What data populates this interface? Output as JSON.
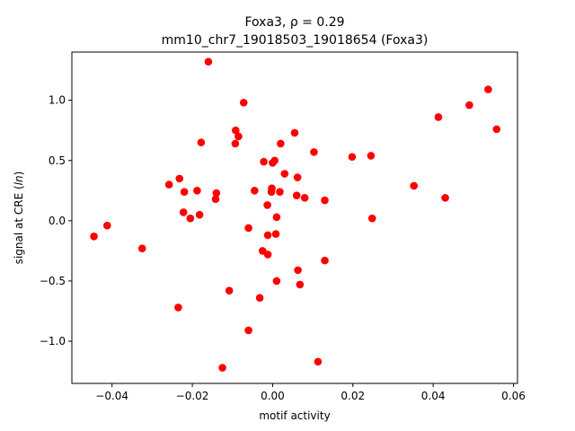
{
  "chart_data": {
    "type": "scatter",
    "title_line1": "Foxa3, ρ = 0.29",
    "title_line2": "mm10_chr7_19018503_19018654 (Foxa3)",
    "xlabel": "motif activity",
    "ylabel": "signal at CRE (ln)",
    "xlim": [
      -0.05,
      0.061
    ],
    "ylim": [
      -1.35,
      1.4
    ],
    "xticks": [
      -0.04,
      -0.02,
      0.0,
      0.02,
      0.04,
      0.06
    ],
    "xtick_labels": [
      "−0.04",
      "−0.02",
      "0.00",
      "0.02",
      "0.04",
      "0.06"
    ],
    "yticks": [
      -1.0,
      -0.5,
      0.0,
      0.5,
      1.0
    ],
    "ytick_labels": [
      "−1.0",
      "−0.5",
      "0.0",
      "0.5",
      "1.0"
    ],
    "grid": false,
    "marker_color": "#ff0000",
    "points": [
      {
        "x": -0.0445,
        "y": -0.13
      },
      {
        "x": -0.0412,
        "y": -0.04
      },
      {
        "x": -0.0325,
        "y": -0.23
      },
      {
        "x": -0.0258,
        "y": 0.3
      },
      {
        "x": -0.0232,
        "y": 0.35
      },
      {
        "x": -0.0235,
        "y": -0.72
      },
      {
        "x": -0.022,
        "y": 0.24
      },
      {
        "x": -0.0222,
        "y": 0.07
      },
      {
        "x": -0.0205,
        "y": 0.02
      },
      {
        "x": -0.0188,
        "y": 0.25
      },
      {
        "x": -0.0182,
        "y": 0.05
      },
      {
        "x": -0.0178,
        "y": 0.65
      },
      {
        "x": -0.016,
        "y": 1.32
      },
      {
        "x": -0.014,
        "y": 0.23
      },
      {
        "x": -0.0142,
        "y": 0.18
      },
      {
        "x": -0.0125,
        "y": -1.22
      },
      {
        "x": -0.0108,
        "y": -0.58
      },
      {
        "x": -0.0092,
        "y": 0.75
      },
      {
        "x": -0.0093,
        "y": 0.64
      },
      {
        "x": -0.0085,
        "y": 0.7
      },
      {
        "x": -0.0072,
        "y": 0.98
      },
      {
        "x": -0.006,
        "y": -0.06
      },
      {
        "x": -0.006,
        "y": -0.91
      },
      {
        "x": -0.0045,
        "y": 0.25
      },
      {
        "x": -0.0032,
        "y": -0.64
      },
      {
        "x": -0.0025,
        "y": -0.25
      },
      {
        "x": -0.0022,
        "y": 0.49
      },
      {
        "x": -0.0013,
        "y": 0.13
      },
      {
        "x": -0.0012,
        "y": -0.12
      },
      {
        "x": -0.0012,
        "y": -0.28
      },
      {
        "x": -0.0002,
        "y": 0.27
      },
      {
        "x": -0.0003,
        "y": 0.24
      },
      {
        "x": 0.0,
        "y": 0.48
      },
      {
        "x": 0.0005,
        "y": 0.5
      },
      {
        "x": 0.0008,
        "y": -0.11
      },
      {
        "x": 0.001,
        "y": 0.03
      },
      {
        "x": 0.001,
        "y": -0.5
      },
      {
        "x": 0.0018,
        "y": 0.24
      },
      {
        "x": 0.002,
        "y": 0.64
      },
      {
        "x": 0.003,
        "y": 0.39
      },
      {
        "x": 0.0055,
        "y": 0.73
      },
      {
        "x": 0.006,
        "y": 0.21
      },
      {
        "x": 0.0062,
        "y": 0.36
      },
      {
        "x": 0.0063,
        "y": -0.41
      },
      {
        "x": 0.0068,
        "y": -0.53
      },
      {
        "x": 0.008,
        "y": 0.19
      },
      {
        "x": 0.0103,
        "y": 0.57
      },
      {
        "x": 0.0113,
        "y": -1.17
      },
      {
        "x": 0.013,
        "y": 0.17
      },
      {
        "x": 0.013,
        "y": -0.33
      },
      {
        "x": 0.0198,
        "y": 0.53
      },
      {
        "x": 0.0245,
        "y": 0.54
      },
      {
        "x": 0.0248,
        "y": 0.02
      },
      {
        "x": 0.0352,
        "y": 0.29
      },
      {
        "x": 0.0413,
        "y": 0.86
      },
      {
        "x": 0.043,
        "y": 0.19
      },
      {
        "x": 0.049,
        "y": 0.96
      },
      {
        "x": 0.0537,
        "y": 1.09
      },
      {
        "x": 0.0558,
        "y": 0.76
      }
    ]
  }
}
